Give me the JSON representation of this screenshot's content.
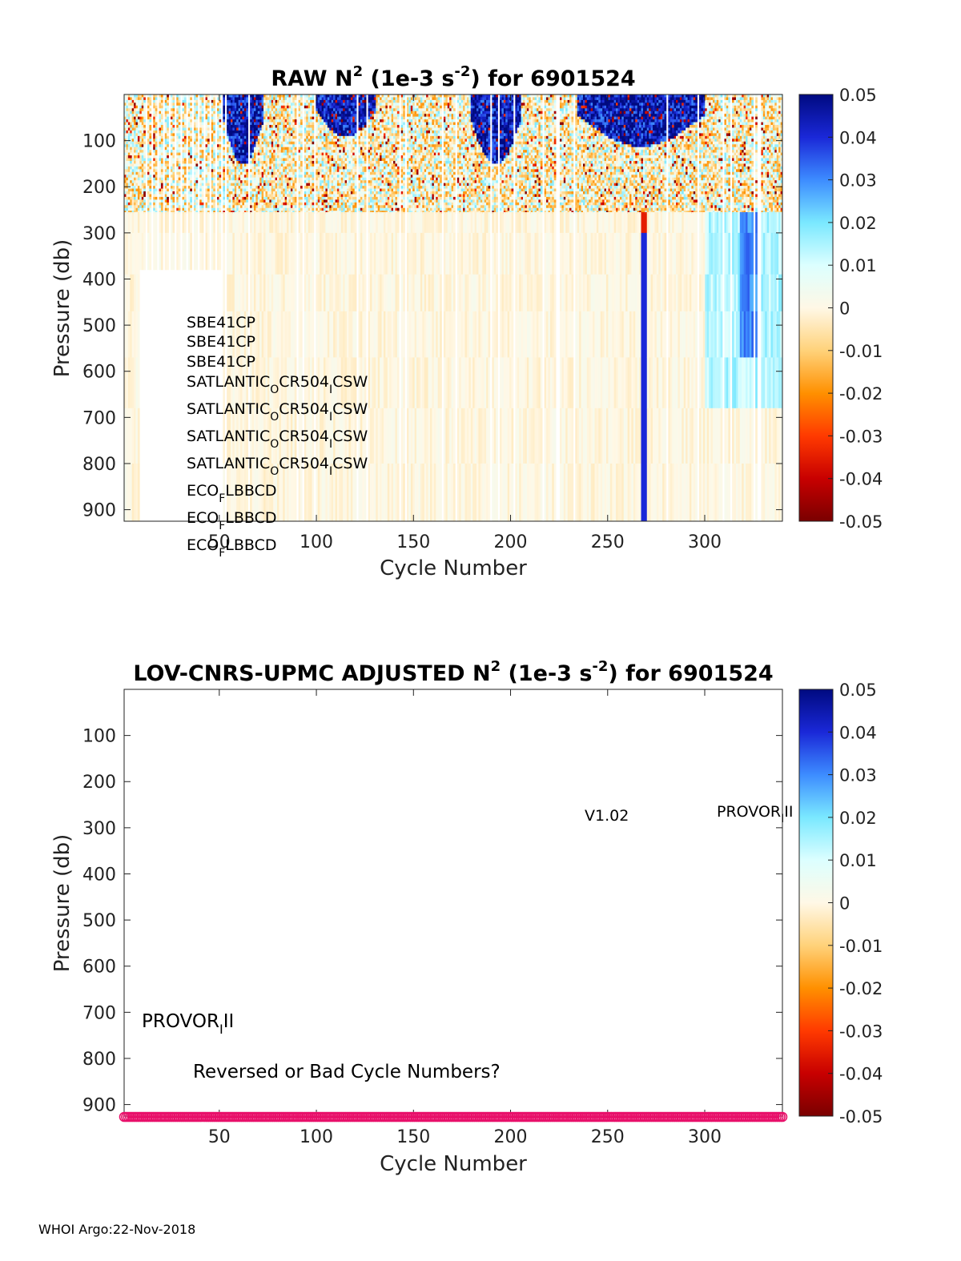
{
  "colors": {
    "colormap": [
      "#7a0000",
      "#c80000",
      "#ff3a00",
      "#ff9000",
      "#ffd27a",
      "#fff8e6",
      "#dcffff",
      "#7ae8ff",
      "#3d8cff",
      "#1a28d8",
      "#000a80"
    ],
    "marker": "#e8106a"
  },
  "footer": "WHOI Argo:22-Nov-2018",
  "chart_data": [
    {
      "type": "heatmap",
      "title_parts": [
        "RAW N",
        "2",
        " (1e-3 s",
        "-2",
        ") for 6901524"
      ],
      "xlabel": "Cycle Number",
      "ylabel": "Pressure (db)",
      "xlim": [
        1,
        340
      ],
      "ylim": [
        925,
        0
      ],
      "xticks": [
        50,
        100,
        150,
        200,
        250,
        300
      ],
      "yticks": [
        100,
        200,
        300,
        400,
        500,
        600,
        700,
        800,
        900
      ],
      "colorbar": {
        "range": [
          -0.05,
          0.05
        ],
        "ticks": [
          "0.05",
          "0.04",
          "0.03",
          "0.02",
          "0.01",
          "0",
          "-0.01",
          "-0.02",
          "-0.03",
          "-0.04",
          "-0.05"
        ]
      },
      "annotations": [
        {
          "text": "SBE41CP",
          "sub": "",
          "rest": ""
        },
        {
          "text": "SBE41CP",
          "sub": "",
          "rest": ""
        },
        {
          "text": "SBE41CP",
          "sub": "",
          "rest": ""
        },
        {
          "text": "SATLANTIC",
          "sub": "O",
          "rest": "CR504",
          "sub2": "I",
          "rest2": "CSW"
        },
        {
          "text": "SATLANTIC",
          "sub": "O",
          "rest": "CR504",
          "sub2": "I",
          "rest2": "CSW"
        },
        {
          "text": "SATLANTIC",
          "sub": "O",
          "rest": "CR504",
          "sub2": "I",
          "rest2": "CSW"
        },
        {
          "text": "SATLANTIC",
          "sub": "O",
          "rest": "CR504",
          "sub2": "I",
          "rest2": "CSW"
        },
        {
          "text": "ECO",
          "sub": "F",
          "rest": "LBBCD"
        },
        {
          "text": "ECO",
          "sub": "F",
          "rest": "LBBCD"
        },
        {
          "text": "ECO",
          "sub": "F",
          "rest": "LBBCD"
        }
      ]
    },
    {
      "type": "heatmap",
      "title_parts": [
        "LOV-CNRS-UPMC  ADJUSTED N",
        "2",
        " (1e-3 s",
        "-2",
        ") for 6901524"
      ],
      "xlabel": "Cycle Number",
      "ylabel": "Pressure (db)",
      "xlim": [
        1,
        340
      ],
      "ylim": [
        925,
        0
      ],
      "xticks": [
        50,
        100,
        150,
        200,
        250,
        300
      ],
      "yticks": [
        100,
        200,
        300,
        400,
        500,
        600,
        700,
        800,
        900
      ],
      "colorbar": {
        "range": [
          -0.05,
          0.05
        ],
        "ticks": [
          "0.05",
          "0.04",
          "0.03",
          "0.02",
          "0.01",
          "0",
          "-0.01",
          "-0.02",
          "-0.03",
          "-0.04",
          "-0.05"
        ]
      },
      "annotations": {
        "version": "V1.02",
        "platform_a": {
          "text": "PROVOR",
          "sub": "I",
          "rest": "II"
        },
        "platform_b": {
          "text": "PROVOR",
          "sub": "I",
          "rest": "II"
        },
        "warning": "Reversed or Bad Cycle Numbers?"
      },
      "marker_series": {
        "name": "",
        "y": 925,
        "x_start": 1,
        "x_end": 340
      }
    }
  ]
}
